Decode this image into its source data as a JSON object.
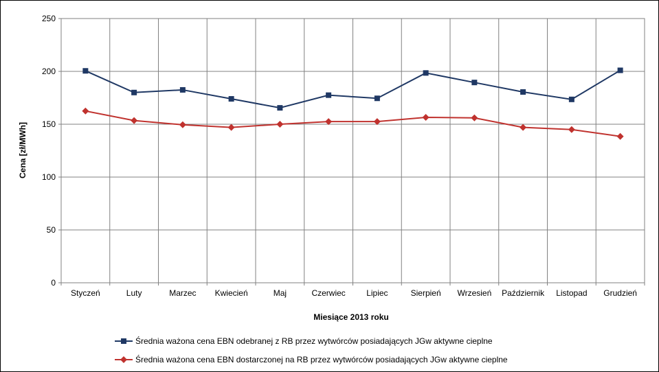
{
  "chart_data": {
    "type": "line",
    "title": "",
    "xlabel": "Miesiące 2013  roku",
    "ylabel": "Cena [zł/MWh]",
    "ylim": [
      0,
      250
    ],
    "yticks": [
      0,
      50,
      100,
      150,
      200,
      250
    ],
    "grid": true,
    "legend_position": "bottom",
    "categories": [
      "Styczeń",
      "Luty",
      "Marzec",
      "Kwiecień",
      "Maj",
      "Czerwiec",
      "Lipiec",
      "Sierpień",
      "Wrzesień",
      "Październik",
      "Listopad",
      "Grudzień"
    ],
    "series": [
      {
        "name": "Średnia ważona cena EBN odebranej z RB przez wytwórców posiadających JGw aktywne cieplne",
        "color": "#1f3864",
        "marker": "square",
        "values": [
          200.5,
          180,
          182.5,
          174,
          165.5,
          177.5,
          174.5,
          198.5,
          189.5,
          180.5,
          173.5,
          201
        ]
      },
      {
        "name": "Średnia ważona cena EBN dostarczonej na RB przez wytwórców posiadających JGw aktywne cieplne",
        "color": "#c0322e",
        "marker": "diamond",
        "values": [
          162.5,
          153.5,
          149.5,
          147,
          150,
          152.5,
          152.5,
          156.5,
          156,
          147,
          145,
          138.5
        ]
      }
    ]
  }
}
